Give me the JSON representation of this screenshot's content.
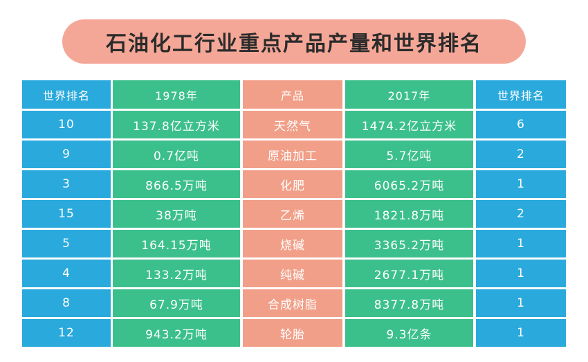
{
  "title": "石油化工行业重点产品产量和世界排名",
  "table": {
    "header": [
      "世界排名",
      "1978年",
      "产品",
      "2017年",
      "世界排名"
    ],
    "rows": [
      [
        "10",
        "137.8亿立方米",
        "天然气",
        "1474.2亿立方米",
        "6"
      ],
      [
        "9",
        "0.7亿吨",
        "原油加工",
        "5.7亿吨",
        "2"
      ],
      [
        "3",
        "866.5万吨",
        "化肥",
        "6065.2万吨",
        "1"
      ],
      [
        "15",
        "38万吨",
        "乙烯",
        "1821.8万吨",
        "2"
      ],
      [
        "5",
        "164.15万吨",
        "烧碱",
        "3365.2万吨",
        "1"
      ],
      [
        "4",
        "133.2万吨",
        "纯碱",
        "2677.1万吨",
        "1"
      ],
      [
        "8",
        "67.9万吨",
        "合成树脂",
        "8377.8万吨",
        "1"
      ],
      [
        "12",
        "943.2万吨",
        "轮胎",
        "9.3亿条",
        "1"
      ]
    ]
  }
}
